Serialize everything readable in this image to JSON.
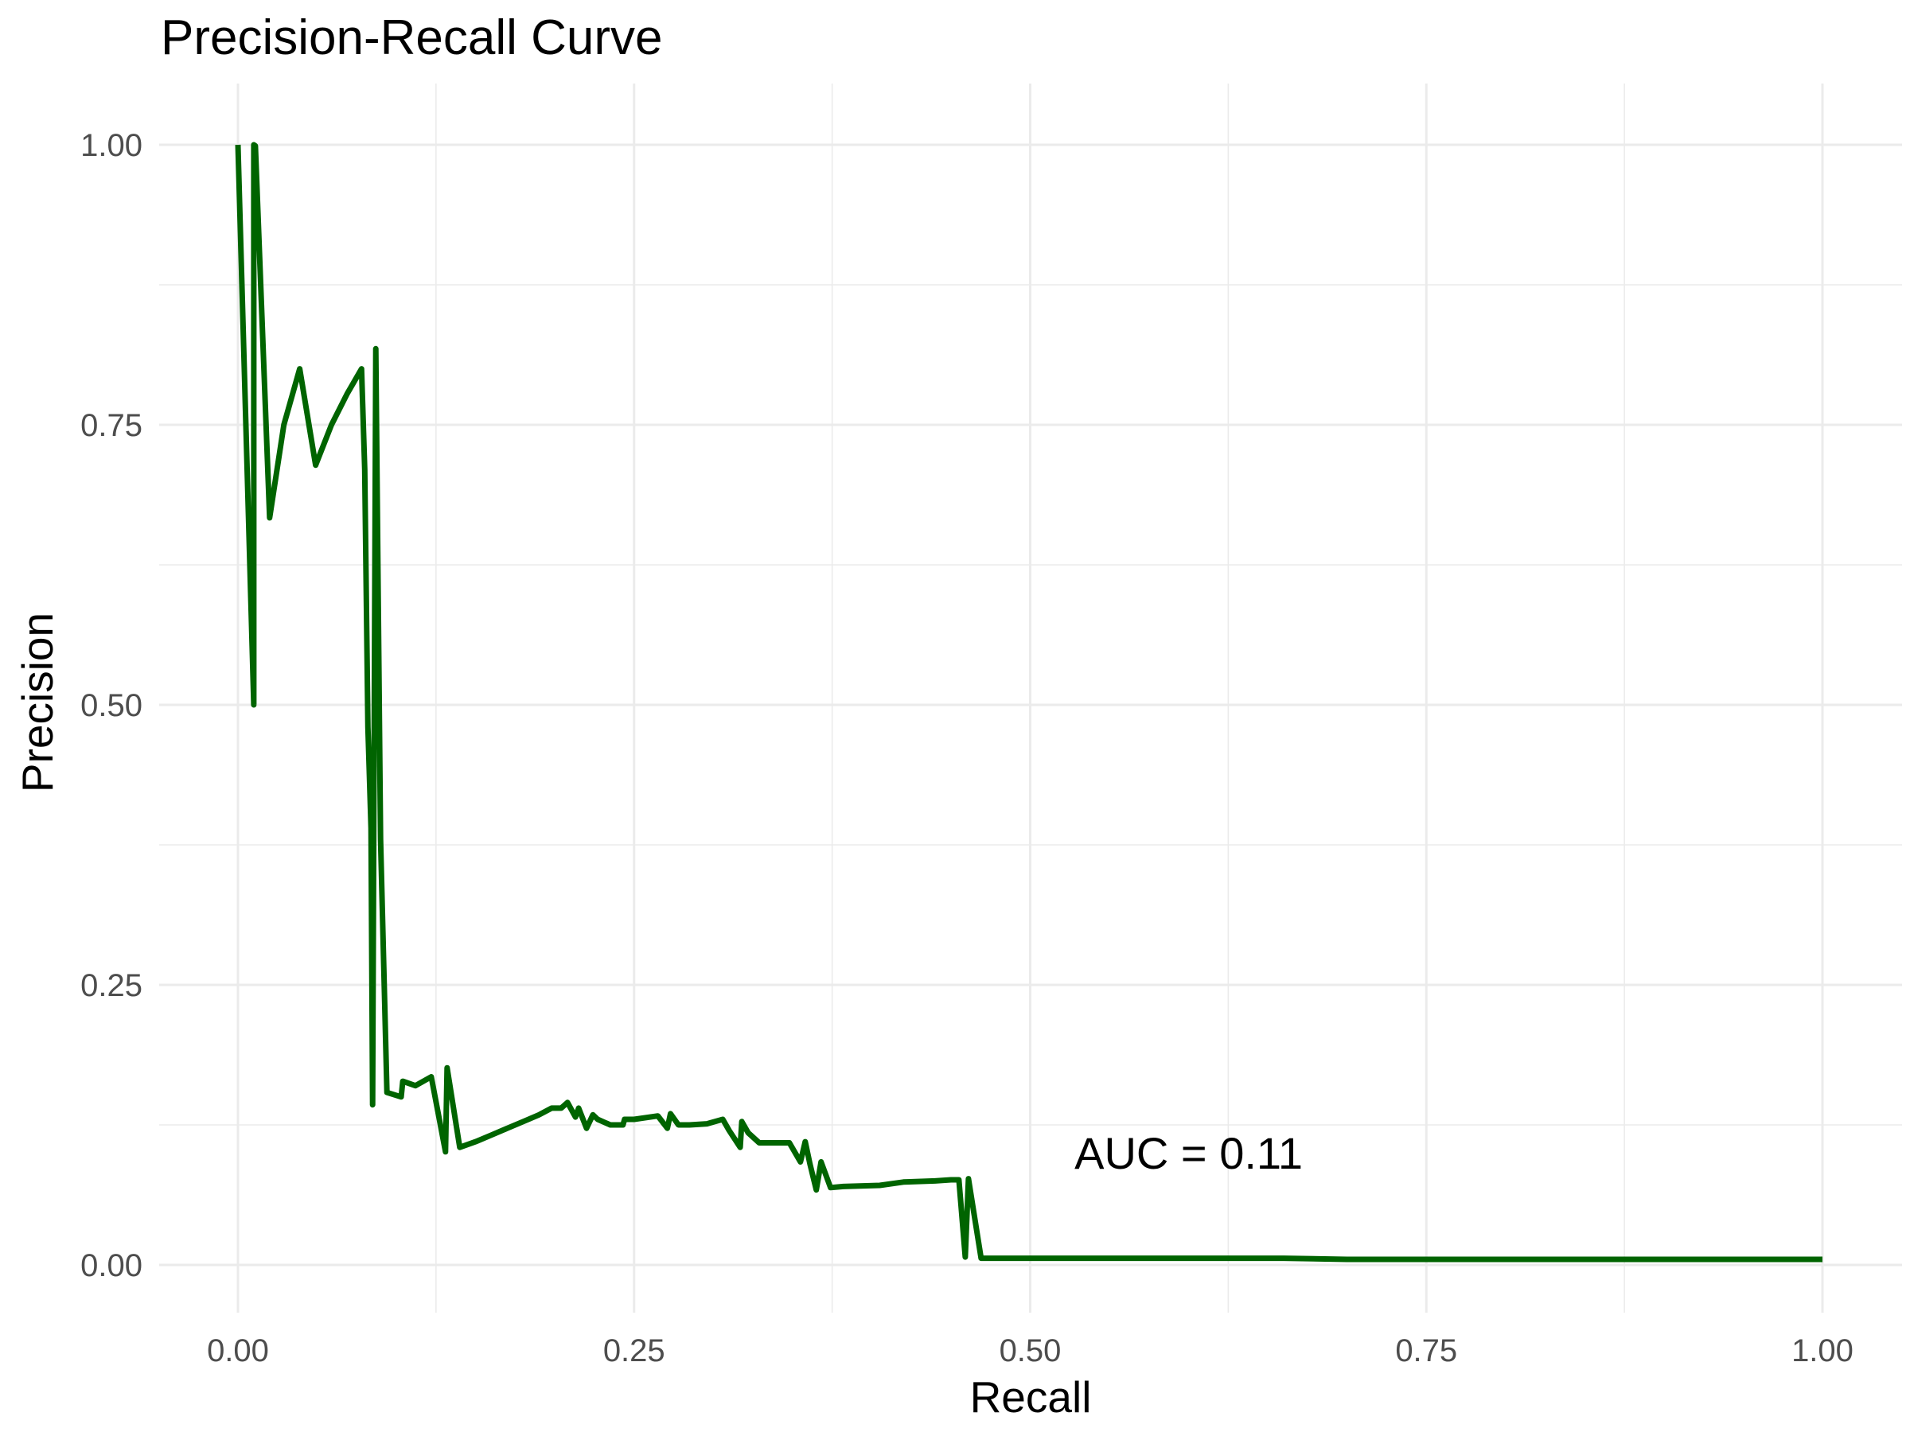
{
  "chart_data": {
    "type": "line",
    "title": "Precision-Recall Curve",
    "xlabel": "Recall",
    "ylabel": "Precision",
    "xlim": [
      0,
      1
    ],
    "ylim": [
      0,
      1
    ],
    "x_ticks": [
      "0.00",
      "0.25",
      "0.50",
      "0.75",
      "1.00"
    ],
    "y_ticks": [
      "0.00",
      "0.25",
      "0.50",
      "0.75",
      "1.00"
    ],
    "grid": true,
    "legend": "none",
    "line_color": "#006400",
    "annotation": {
      "text": "AUC = 0.11",
      "x": 0.6,
      "y": 0.1
    },
    "series": [
      {
        "x": [
          0.0,
          0.01,
          0.01,
          0.011,
          0.02,
          0.029,
          0.039,
          0.049,
          0.059,
          0.069,
          0.078,
          0.08,
          0.082,
          0.084,
          0.085,
          0.087,
          0.09,
          0.094,
          0.103,
          0.104,
          0.112,
          0.122,
          0.131,
          0.132,
          0.14,
          0.15,
          0.16,
          0.17,
          0.18,
          0.19,
          0.198,
          0.204,
          0.208,
          0.213,
          0.215,
          0.22,
          0.224,
          0.227,
          0.235,
          0.243,
          0.244,
          0.25,
          0.265,
          0.271,
          0.273,
          0.278,
          0.285,
          0.296,
          0.306,
          0.31,
          0.317,
          0.318,
          0.322,
          0.329,
          0.341,
          0.348,
          0.355,
          0.358,
          0.361,
          0.365,
          0.368,
          0.374,
          0.382,
          0.405,
          0.42,
          0.44,
          0.45,
          0.455,
          0.459,
          0.461,
          0.469,
          0.5,
          0.55,
          0.6,
          0.66,
          0.7,
          0.8,
          0.9,
          1.0
        ],
        "y": [
          1.0,
          0.5,
          1.0,
          0.999,
          0.667,
          0.75,
          0.8,
          0.714,
          0.75,
          0.778,
          0.8,
          0.71,
          0.48,
          0.39,
          0.143,
          0.818,
          0.38,
          0.154,
          0.15,
          0.164,
          0.16,
          0.168,
          0.101,
          0.176,
          0.105,
          0.11,
          0.116,
          0.122,
          0.128,
          0.134,
          0.14,
          0.14,
          0.145,
          0.132,
          0.14,
          0.122,
          0.134,
          0.13,
          0.125,
          0.125,
          0.13,
          0.13,
          0.133,
          0.122,
          0.135,
          0.125,
          0.125,
          0.126,
          0.13,
          0.12,
          0.105,
          0.128,
          0.118,
          0.109,
          0.109,
          0.109,
          0.092,
          0.11,
          0.09,
          0.067,
          0.092,
          0.069,
          0.07,
          0.071,
          0.074,
          0.075,
          0.076,
          0.076,
          0.007,
          0.077,
          0.006,
          0.006,
          0.006,
          0.006,
          0.006,
          0.005,
          0.005,
          0.005,
          0.005
        ]
      }
    ]
  }
}
